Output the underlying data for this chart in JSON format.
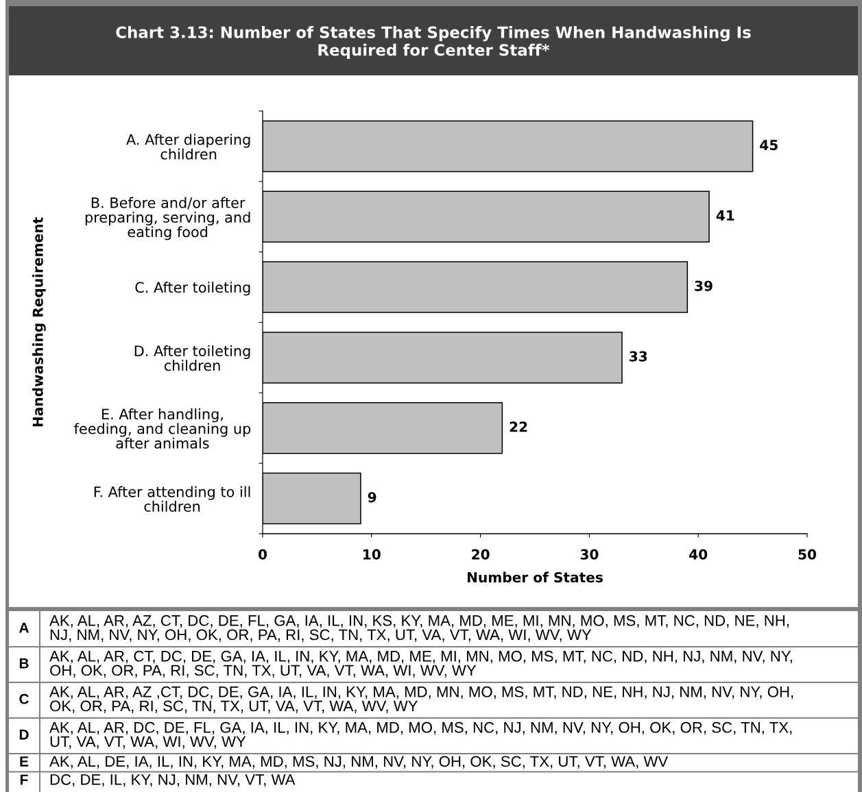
{
  "chart_data": {
    "type": "bar",
    "orientation": "horizontal",
    "title": "Chart 3.13: Number of States That Specify Times When Handwashing Is\nRequired for Center Staff*",
    "xlabel": "Number of States",
    "ylabel": "Handwashing Requirement",
    "categories": [
      "A. After diapering\nchildren",
      "B. Before and/or after\npreparing, serving, and\neating food",
      "C. After toileting",
      "D. After toileting\nchildren",
      "E. After handling,\nfeeding, and cleaning up\nafter animals",
      "F. After attending to ill\nchildren"
    ],
    "values": [
      45,
      41,
      39,
      33,
      22,
      9
    ],
    "color": "#c0c0c0",
    "xlim": [
      0,
      50
    ],
    "xticks": [
      0,
      10,
      20,
      30,
      40,
      50
    ],
    "data_labels": true,
    "annotations": [
      "A",
      "AK, AL, AR, AZ, CT, DC, DE, FL, GA, IA, IL, IN, KS, KY, MA, MD, ME, MI, MN, MO, MS, MT, NC, ND, NE, NH,\nNJ, NM, NV, NY, OH, OK, OR, PA, RI, SC, TN, TX, UT, VA, VT, WA, WI, WV, WY",
      "B",
      "AK, AL, AR, CT, DC, DE, GA, IA, IL, IN, KY, MA, MD, ME, MI, MN, MO, MS, MT, NC, ND, NH, NJ, NM, NV, NY,\nOH, OK, OR, PA, RI, SC, TN, TX, UT, VA, VT, WA, WI, WV, WY",
      "C",
      "AK, AL, AR, AZ ,CT, DC, DE, GA, IA, IL, IN, KY, MA, MD, MN, MO, MS, MT, ND, NE, NH, NJ, NM, NV, NY, OH,\nOK, OR, PA, RI, SC, TN, TX, UT, VA, VT, WA, WV, WY",
      "D",
      "AK, AL, AR, DC, DE, FL, GA, IA, IL, IN, KY, MA, MD, MO, MS, NC, NJ, NM, NV, NY, OH, OK, OR, SC, TN, TX,\nUT, VA, VT, WA, WI, WV, WY",
      "E",
      "AK, AL, DE, IA, IL, IN, KY, MA, MD, MS, NJ, NM, NV, NY, OH, OK, SC, TX, UT, VT, WA, WV",
      "F",
      "DC, DE, IL, KY, NJ, NM, NV, VT, WA"
    ]
  }
}
